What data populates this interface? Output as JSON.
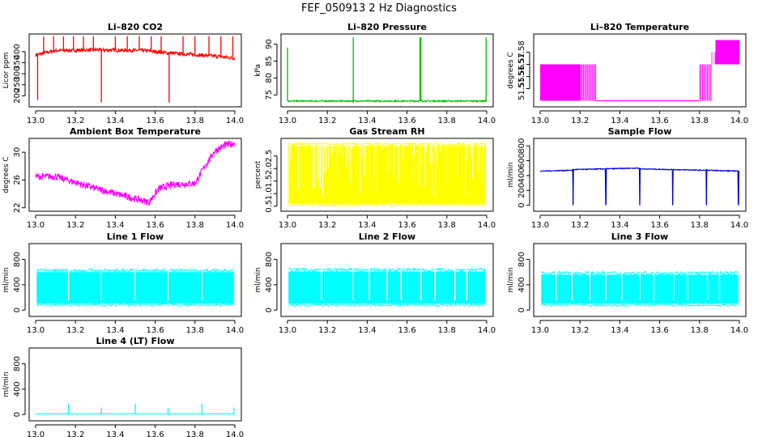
{
  "figure": {
    "title": "FEF_050913  2 Hz Diagnostics"
  },
  "chart_data": [
    {
      "id": "co2",
      "type": "line",
      "title": "Li–820 CO2",
      "ylabel": "Licor ppm",
      "xlim": [
        13.0,
        14.0
      ],
      "ylim": [
        150,
        480
      ],
      "yticks": [
        200,
        250,
        300,
        350,
        400
      ],
      "yticklabels": [
        "200",
        "250",
        "300",
        "350",
        "400"
      ],
      "xticks": [
        13.0,
        13.2,
        13.4,
        13.6,
        13.8,
        14.0
      ],
      "xticklabels": [
        "13.0",
        "13.2",
        "13.4",
        "13.6",
        "13.8",
        "14.0"
      ],
      "color": "#ff0000",
      "baseline": [
        [
          13.0,
          385
        ],
        [
          13.1,
          405
        ],
        [
          13.3,
          408
        ],
        [
          13.55,
          405
        ],
        [
          13.65,
          395
        ],
        [
          13.9,
          380
        ],
        [
          14.0,
          370
        ]
      ],
      "noise": 8,
      "spikes": [
        [
          13.01,
          180
        ],
        [
          13.04,
          470
        ],
        [
          13.09,
          470
        ],
        [
          13.14,
          470
        ],
        [
          13.19,
          470
        ],
        [
          13.24,
          470
        ],
        [
          13.29,
          470
        ],
        [
          13.33,
          170
        ],
        [
          13.4,
          470
        ],
        [
          13.46,
          470
        ],
        [
          13.52,
          470
        ],
        [
          13.58,
          470
        ],
        [
          13.63,
          470
        ],
        [
          13.67,
          170
        ],
        [
          13.74,
          470
        ],
        [
          13.8,
          470
        ],
        [
          13.87,
          470
        ],
        [
          13.93,
          470
        ],
        [
          13.99,
          470
        ]
      ]
    },
    {
      "id": "pressure",
      "type": "line",
      "title": "Li–820 Pressure",
      "ylabel": "kPa",
      "xlim": [
        13.0,
        14.0
      ],
      "ylim": [
        71.5,
        93
      ],
      "yticks": [
        75,
        80,
        85,
        90
      ],
      "yticklabels": [
        "75",
        "80",
        "85",
        "90"
      ],
      "xticks": [
        13.0,
        13.2,
        13.4,
        13.6,
        13.8,
        14.0
      ],
      "xticklabels": [
        "13.0",
        "13.2",
        "13.4",
        "13.6",
        "13.8",
        "14.0"
      ],
      "color": "#00c000",
      "baseline": [
        [
          13.0,
          73.2
        ],
        [
          14.0,
          73.2
        ]
      ],
      "noise": 0.2,
      "spikes": [
        [
          13.0,
          89
        ],
        [
          13.33,
          92
        ],
        [
          13.665,
          92
        ],
        [
          13.67,
          92
        ],
        [
          13.997,
          92
        ]
      ]
    },
    {
      "id": "li_temp",
      "type": "line",
      "title": "Li–820 Temperature",
      "ylabel": "degrees C",
      "xlim": [
        13.0,
        14.0
      ],
      "ylim": [
        51.535,
        51.595
      ],
      "yticks": [
        51.55,
        51.56,
        51.57,
        51.58
      ],
      "yticklabels": [
        "51.55",
        "51.56",
        "51.57",
        "51.58"
      ],
      "xticks": [
        13.0,
        13.2,
        13.4,
        13.6,
        13.8,
        14.0
      ],
      "xticklabels": [
        "13.0",
        "13.2",
        "13.4",
        "13.6",
        "13.8",
        "14.0"
      ],
      "color": "#ff00ff",
      "segments": [
        {
          "x0": 13.0,
          "x1": 13.2,
          "lo": 51.54,
          "hi": 51.57,
          "density": 60
        },
        {
          "x0": 13.2,
          "x1": 13.28,
          "lo": 51.54,
          "hi": 51.57,
          "density": 12
        },
        {
          "x0": 13.28,
          "x1": 13.8,
          "lo": 51.54,
          "hi": 51.54,
          "density": 0
        },
        {
          "x0": 13.8,
          "x1": 13.86,
          "lo": 51.54,
          "hi": 51.57,
          "density": 10
        },
        {
          "x0": 13.86,
          "x1": 13.88,
          "lo": 51.57,
          "hi": 51.58,
          "density": 6
        },
        {
          "x0": 13.88,
          "x1": 14.0,
          "lo": 51.57,
          "hi": 51.59,
          "density": 40
        }
      ]
    },
    {
      "id": "box_temp",
      "type": "line",
      "title": "Ambient Box Temperature",
      "ylabel": "degrees C",
      "xlim": [
        13.0,
        14.0
      ],
      "ylim": [
        21.5,
        32
      ],
      "yticks": [
        22,
        26,
        30
      ],
      "yticklabels": [
        "22",
        "26",
        "30"
      ],
      "xticks": [
        13.0,
        13.2,
        13.4,
        13.6,
        13.8,
        14.0
      ],
      "xticklabels": [
        "13.0",
        "13.2",
        "13.4",
        "13.6",
        "13.8",
        "14.0"
      ],
      "color": "#ff00ff",
      "baseline": [
        [
          13.0,
          26.5
        ],
        [
          13.1,
          26.5
        ],
        [
          13.3,
          24.8
        ],
        [
          13.5,
          23.3
        ],
        [
          13.57,
          22.8
        ],
        [
          13.62,
          24.8
        ],
        [
          13.7,
          25.4
        ],
        [
          13.8,
          25.5
        ],
        [
          13.85,
          28.0
        ],
        [
          13.9,
          30.2
        ],
        [
          13.95,
          31.0
        ],
        [
          14.0,
          31.3
        ]
      ],
      "noise": 0.5
    },
    {
      "id": "rh",
      "type": "band",
      "title": "Gas Stream RH",
      "ylabel": "percent",
      "xlim": [
        13.0,
        14.0
      ],
      "ylim": [
        0.3,
        3.2
      ],
      "yticks": [
        0.5,
        1.0,
        1.5,
        2.0,
        2.5
      ],
      "yticklabels": [
        "0.5",
        "1.0",
        "1.5",
        "2.0",
        "2.5"
      ],
      "xticks": [
        13.0,
        13.2,
        13.4,
        13.6,
        13.8,
        14.0
      ],
      "xticklabels": [
        "13.0",
        "13.2",
        "13.4",
        "13.6",
        "13.8",
        "14.0"
      ],
      "color": "#ffff00",
      "band": [
        0.6,
        2.9
      ],
      "dips": 60
    },
    {
      "id": "sample_flow",
      "type": "line",
      "title": "Sample Flow",
      "ylabel": "ml/min",
      "xlim": [
        13.0,
        14.0
      ],
      "ylim": [
        -80,
        900
      ],
      "yticks": [
        0,
        200,
        400,
        600,
        800
      ],
      "yticklabels": [
        "0",
        "200",
        "400",
        "600",
        "800"
      ],
      "xticks": [
        13.0,
        13.2,
        13.4,
        13.6,
        13.8,
        14.0
      ],
      "xticklabels": [
        "13.0",
        "13.2",
        "13.4",
        "13.6",
        "13.8",
        "14.0"
      ],
      "color": "#0000cc",
      "baseline": [
        [
          13.0,
          460
        ],
        [
          13.16,
          470
        ],
        [
          13.165,
          480
        ],
        [
          13.49,
          500
        ],
        [
          13.5,
          490
        ],
        [
          14.0,
          460
        ]
      ],
      "noise": 6,
      "dropouts": [
        13.165,
        13.33,
        13.5,
        13.665,
        13.835,
        13.995
      ]
    },
    {
      "id": "line1",
      "type": "band",
      "title": "Line 1 Flow",
      "ylabel": "ml/min",
      "xlim": [
        13.0,
        14.0
      ],
      "ylim": [
        -100,
        1050
      ],
      "yticks": [
        0,
        400,
        800
      ],
      "yticklabels": [
        "0",
        "400",
        "800"
      ],
      "xticks": [
        13.0,
        13.2,
        13.4,
        13.6,
        13.8,
        14.0
      ],
      "xticklabels": [
        "13.0",
        "13.2",
        "13.4",
        "13.6",
        "13.8",
        "14.0"
      ],
      "color": "#00ffff",
      "band": [
        100,
        600
      ],
      "gaps": [
        13.165,
        13.33,
        13.5,
        13.665,
        13.835
      ]
    },
    {
      "id": "line2",
      "type": "band",
      "title": "Line 2 Flow",
      "ylabel": "ml/min",
      "xlim": [
        13.0,
        14.0
      ],
      "ylim": [
        -100,
        1050
      ],
      "yticks": [
        0,
        400,
        800
      ],
      "yticklabels": [
        "0",
        "400",
        "800"
      ],
      "xticks": [
        13.0,
        13.2,
        13.4,
        13.6,
        13.8,
        14.0
      ],
      "xticklabels": [
        "13.0",
        "13.2",
        "13.4",
        "13.6",
        "13.8",
        "14.0"
      ],
      "color": "#00ffff",
      "band": [
        100,
        610
      ],
      "gaps": [
        13.17,
        13.33,
        13.41,
        13.5,
        13.57,
        13.67,
        13.74,
        13.84,
        13.9
      ]
    },
    {
      "id": "line3",
      "type": "band",
      "title": "Line 3 Flow",
      "ylabel": "ml/min",
      "xlim": [
        13.0,
        14.0
      ],
      "ylim": [
        -100,
        1050
      ],
      "yticks": [
        0,
        400,
        800
      ],
      "yticklabels": [
        "0",
        "400",
        "800"
      ],
      "xticks": [
        13.0,
        13.2,
        13.4,
        13.6,
        13.8,
        14.0
      ],
      "xticklabels": [
        "13.0",
        "13.2",
        "13.4",
        "13.6",
        "13.8",
        "14.0"
      ],
      "color": "#00ffff",
      "band": [
        100,
        560
      ],
      "gaps": [
        13.08,
        13.16,
        13.25,
        13.33,
        13.41,
        13.5,
        13.57,
        13.67,
        13.74,
        13.84,
        13.9
      ]
    },
    {
      "id": "line4",
      "type": "line",
      "title": "Line 4 (LT) Flow",
      "ylabel": "ml/min",
      "xlim": [
        13.0,
        14.0
      ],
      "ylim": [
        -100,
        1050
      ],
      "yticks": [
        0,
        400,
        800
      ],
      "yticklabels": [
        "0",
        "400",
        "800"
      ],
      "xticks": [
        13.0,
        13.2,
        13.4,
        13.6,
        13.8,
        14.0
      ],
      "xticklabels": [
        "13.0",
        "13.2",
        "13.4",
        "13.6",
        "13.8",
        "14.0"
      ],
      "color": "#00ffff",
      "baseline": [
        [
          13.0,
          10
        ],
        [
          14.0,
          10
        ]
      ],
      "noise": 2,
      "spikes": [
        [
          13.165,
          170
        ],
        [
          13.33,
          110
        ],
        [
          13.5,
          170
        ],
        [
          13.665,
          110
        ],
        [
          13.835,
          170
        ],
        [
          13.995,
          110
        ]
      ]
    }
  ]
}
